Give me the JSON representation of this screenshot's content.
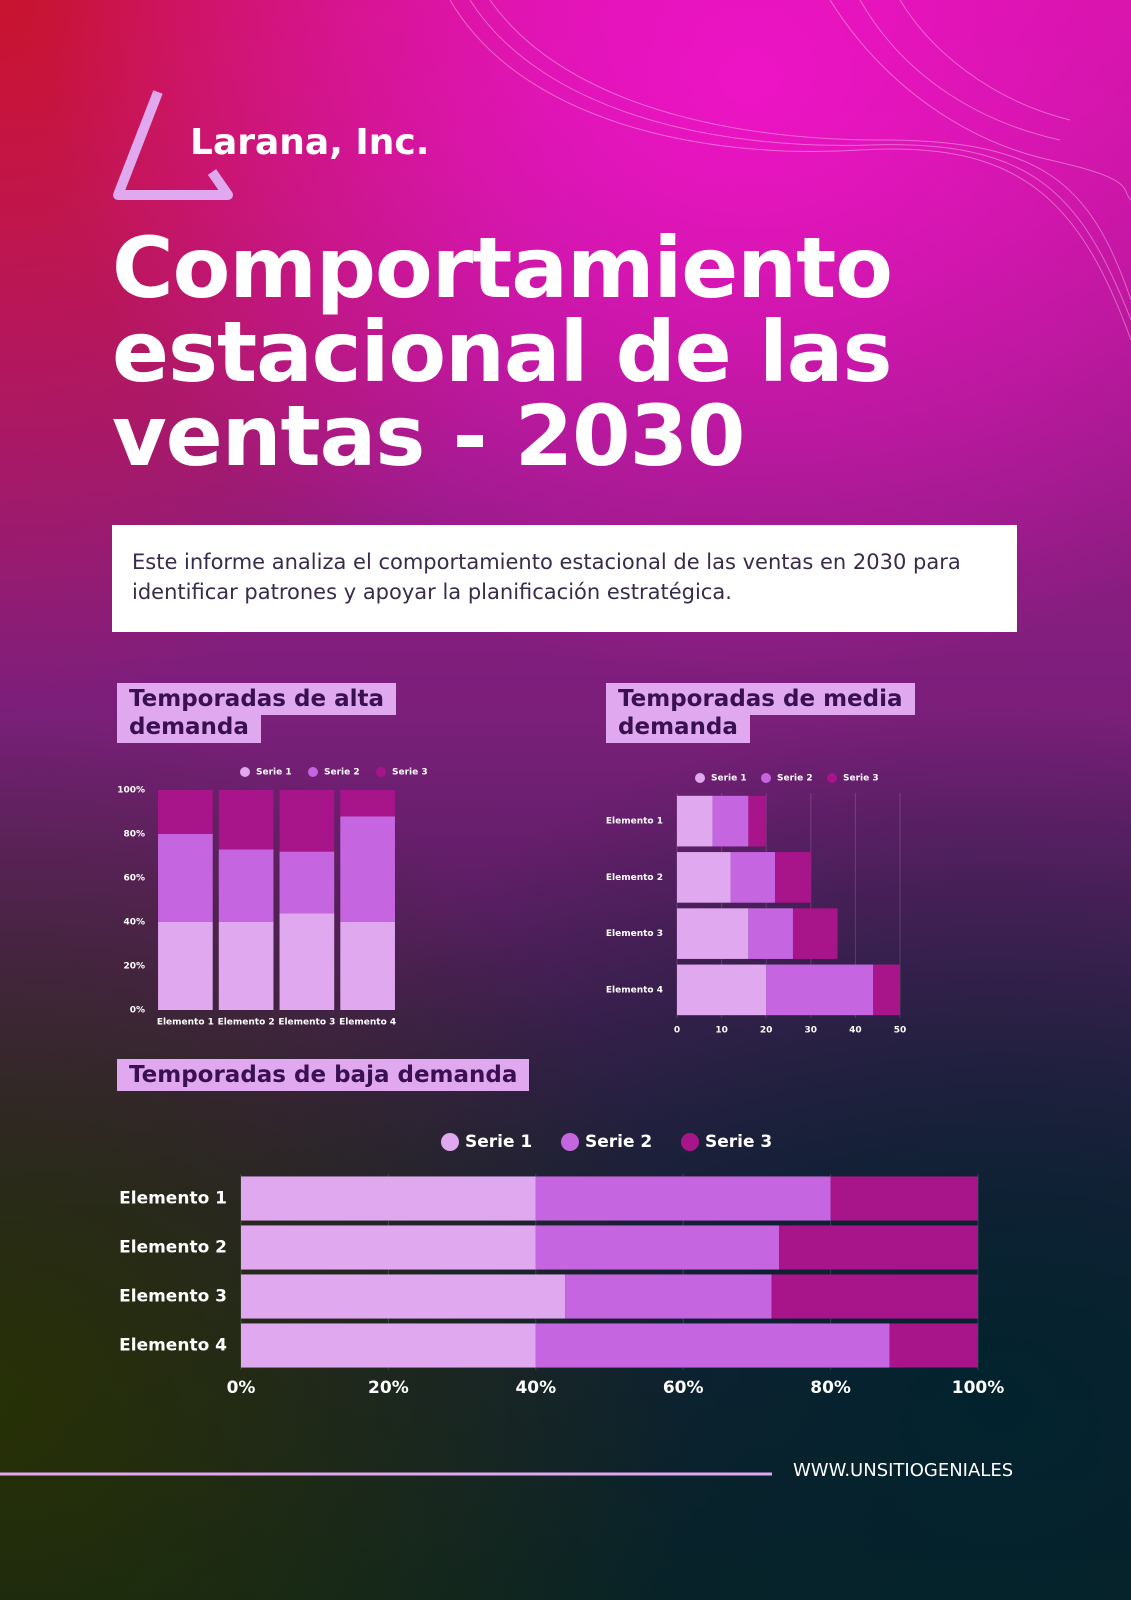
{
  "brand": "Larana, Inc.",
  "title": "Comportamiento estacional de las ventas - 2030",
  "intro": "Este informe analiza el comportamiento estacional de las ventas en 2030 para identificar patrones y apoyar la planificación estratégica.",
  "footer": "WWW.UNSITIOGENIALES",
  "chart_data": [
    {
      "type": "bar",
      "orientation": "vertical",
      "stacked": true,
      "grid": false,
      "title": "Temporadas de alta demanda",
      "categories": [
        "Elemento 1",
        "Elemento 2",
        "Elemento 3",
        "Elemento 4"
      ],
      "series": [
        {
          "name": "Serie 1",
          "color": "#e0a8ef",
          "values": [
            40,
            40,
            44,
            40
          ]
        },
        {
          "name": "Serie 2",
          "color": "#c566e0",
          "values": [
            40,
            33,
            28,
            48
          ]
        },
        {
          "name": "Serie 3",
          "color": "#a8148a",
          "values": [
            20,
            27,
            28,
            12
          ]
        }
      ],
      "ylim": [
        0,
        100
      ],
      "yticks": [
        {
          "value": 0,
          "label": "0%"
        },
        {
          "value": 20,
          "label": "20%"
        },
        {
          "value": 40,
          "label": "40%"
        },
        {
          "value": 60,
          "label": "60%"
        },
        {
          "value": 80,
          "label": "80%"
        },
        {
          "value": 100,
          "label": "100%"
        }
      ]
    },
    {
      "type": "bar",
      "orientation": "horizontal",
      "stacked": true,
      "grid": true,
      "title": "Temporadas de media demanda",
      "categories": [
        "Elemento 1",
        "Elemento 2",
        "Elemento 3",
        "Elemento 4"
      ],
      "series": [
        {
          "name": "Serie 1",
          "color": "#e0a8ef",
          "values": [
            8,
            12,
            16,
            20
          ]
        },
        {
          "name": "Serie 2",
          "color": "#c566e0",
          "values": [
            8,
            10,
            10,
            24
          ]
        },
        {
          "name": "Serie 3",
          "color": "#a8148a",
          "values": [
            4,
            8,
            10,
            6
          ]
        }
      ],
      "xlim": [
        0,
        50
      ],
      "xticks": [
        0,
        10,
        20,
        30,
        40,
        50
      ]
    },
    {
      "type": "bar",
      "orientation": "horizontal",
      "stacked": true,
      "grid": true,
      "title": "Temporadas de baja demanda",
      "categories": [
        "Elemento 1",
        "Elemento 2",
        "Elemento 3",
        "Elemento 4"
      ],
      "series": [
        {
          "name": "Serie 1",
          "color": "#e0a8ef",
          "values": [
            40,
            40,
            44,
            40
          ]
        },
        {
          "name": "Serie 2",
          "color": "#c566e0",
          "values": [
            40,
            33,
            28,
            48
          ]
        },
        {
          "name": "Serie 3",
          "color": "#a8148a",
          "values": [
            20,
            27,
            28,
            12
          ]
        }
      ],
      "xlim": [
        0,
        100
      ],
      "xticks": [
        {
          "value": 0,
          "label": "0%"
        },
        {
          "value": 20,
          "label": "20%"
        },
        {
          "value": 40,
          "label": "40%"
        },
        {
          "value": 60,
          "label": "60%"
        },
        {
          "value": 80,
          "label": "80%"
        },
        {
          "value": 100,
          "label": "100%"
        }
      ]
    }
  ]
}
